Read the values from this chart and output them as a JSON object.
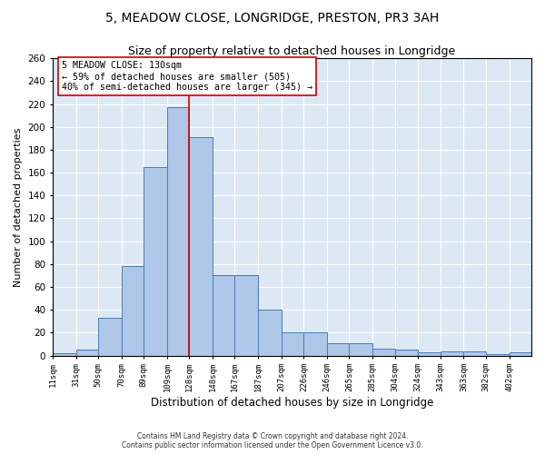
{
  "title1": "5, MEADOW CLOSE, LONGRIDGE, PRESTON, PR3 3AH",
  "title2": "Size of property relative to detached houses in Longridge",
  "xlabel": "Distribution of detached houses by size in Longridge",
  "ylabel": "Number of detached properties",
  "bar_values": [
    2,
    5,
    33,
    78,
    165,
    217,
    191,
    70,
    70,
    40,
    20,
    20,
    11,
    11,
    6,
    5,
    3,
    4,
    4,
    1,
    3
  ],
  "bin_edges": [
    11,
    31,
    50,
    70,
    89,
    109,
    128,
    148,
    167,
    187,
    207,
    226,
    246,
    265,
    285,
    304,
    324,
    343,
    363,
    382,
    402,
    421
  ],
  "tick_labels": [
    "11sqm",
    "31sqm",
    "50sqm",
    "70sqm",
    "89sqm",
    "109sqm",
    "128sqm",
    "148sqm",
    "167sqm",
    "187sqm",
    "207sqm",
    "226sqm",
    "246sqm",
    "265sqm",
    "285sqm",
    "304sqm",
    "324sqm",
    "343sqm",
    "363sqm",
    "382sqm",
    "402sqm"
  ],
  "property_line_x": 128,
  "annotation_text": "5 MEADOW CLOSE: 130sqm\n← 59% of detached houses are smaller (505)\n40% of semi-detached houses are larger (345) →",
  "bar_color": "#aec6e8",
  "bar_edge_color": "#4c7ab0",
  "line_color": "#cc0000",
  "annotation_box_color": "#ffffff",
  "annotation_box_edge": "#cc0000",
  "bg_color": "#dce9f5",
  "footnote": "Contains HM Land Registry data © Crown copyright and database right 2024.\nContains public sector information licensed under the Open Government Licence v3.0.",
  "ylim": [
    0,
    260
  ],
  "yticks": [
    0,
    20,
    40,
    60,
    80,
    100,
    120,
    140,
    160,
    180,
    200,
    220,
    240,
    260
  ],
  "title1_fontsize": 10,
  "title2_fontsize": 9,
  "xlabel_fontsize": 8.5,
  "ylabel_fontsize": 8,
  "tick_fontsize": 6.5,
  "ytick_fontsize": 7.5,
  "annot_fontsize": 7.2
}
